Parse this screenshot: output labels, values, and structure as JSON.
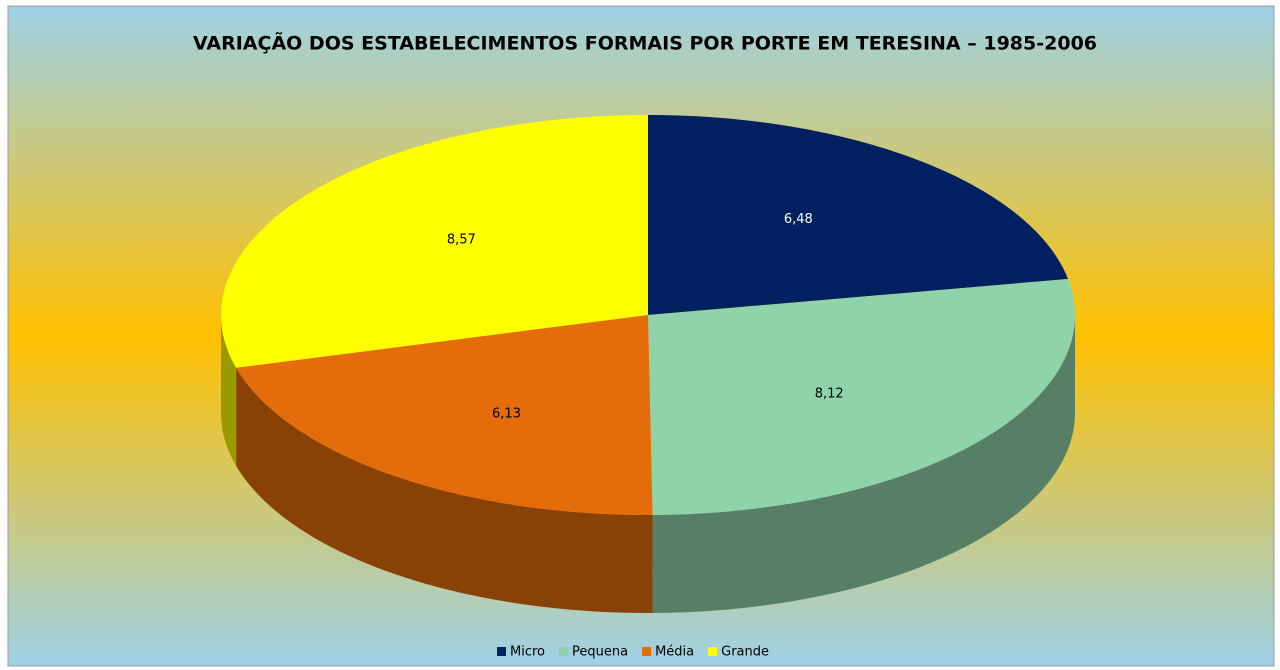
{
  "chart_data": {
    "type": "pie3d",
    "title": "VARIAÇÃO DOS ESTABELECIMENTOS FORMAIS POR PORTE EM TERESINA – 1985-2006",
    "categories": [
      "Micro",
      "Pequena",
      "Média",
      "Grande"
    ],
    "values": [
      6.48,
      8.12,
      6.13,
      8.57
    ],
    "value_labels": [
      "6,48",
      "8,12",
      "6,13",
      "8,57"
    ],
    "colors": [
      "#002060",
      "#8fd3aa",
      "#e46c0a",
      "#ffff00"
    ],
    "legend": "bottom"
  }
}
